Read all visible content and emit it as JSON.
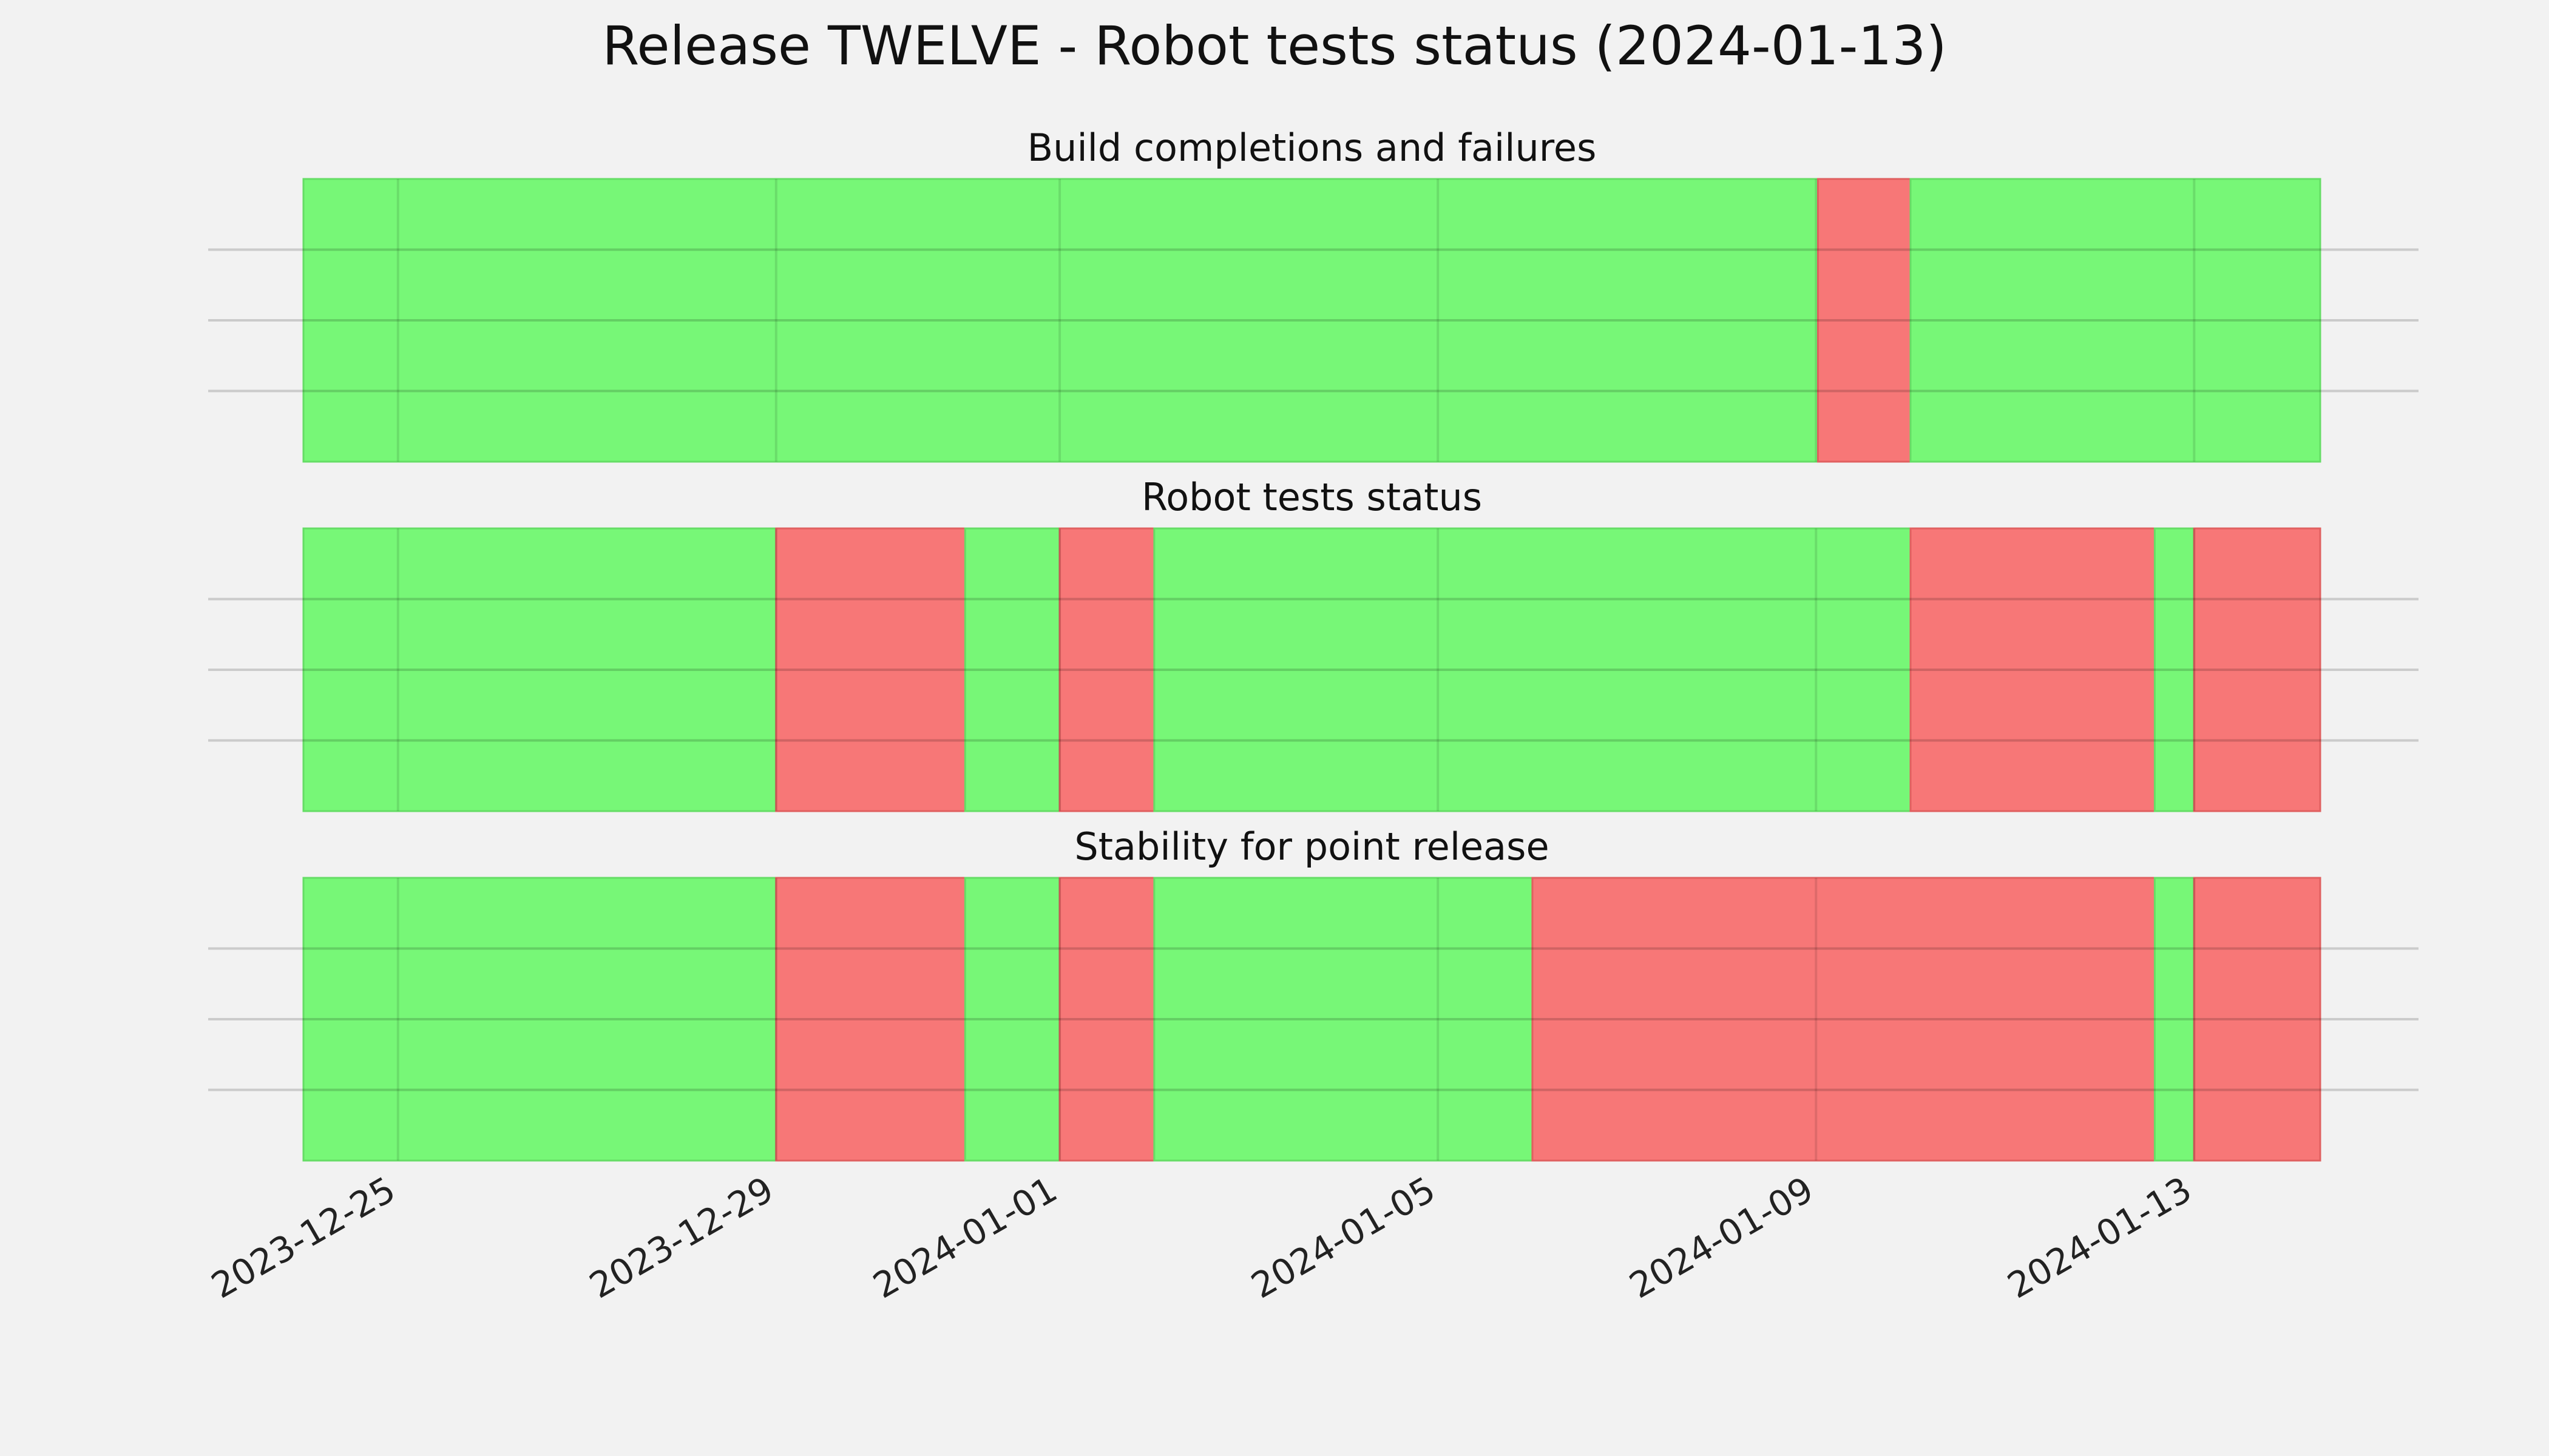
{
  "chart_data": {
    "type": "timeline",
    "title": "Release TWELVE - Robot tests status (2024-01-13)",
    "x_axis": {
      "type": "date",
      "range": [
        "2023-12-24T00:00",
        "2024-01-14T08:00"
      ],
      "ticks": [
        "2023-12-25",
        "2023-12-29",
        "2024-01-01",
        "2024-01-05",
        "2024-01-09",
        "2024-01-13"
      ]
    },
    "grid": true,
    "colors": {
      "pass": "#77f777",
      "fail": "#f77777",
      "background": "#f2f2f2"
    },
    "panels": [
      {
        "title": "Build completions and failures",
        "segments": [
          {
            "start": "2023-12-24T00:00",
            "end": "2024-01-09T00:30",
            "status": "pass"
          },
          {
            "start": "2024-01-09T00:30",
            "end": "2024-01-10T00:00",
            "status": "fail"
          },
          {
            "start": "2024-01-10T00:00",
            "end": "2024-01-14T08:00",
            "status": "pass"
          }
        ]
      },
      {
        "title": "Robot tests status",
        "segments": [
          {
            "start": "2023-12-24T00:00",
            "end": "2023-12-29T00:00",
            "status": "pass"
          },
          {
            "start": "2023-12-29T00:00",
            "end": "2023-12-31T00:00",
            "status": "fail"
          },
          {
            "start": "2023-12-31T00:00",
            "end": "2024-01-01T00:00",
            "status": "pass"
          },
          {
            "start": "2024-01-01T00:00",
            "end": "2024-01-02T00:00",
            "status": "fail"
          },
          {
            "start": "2024-01-02T00:00",
            "end": "2024-01-10T00:00",
            "status": "pass"
          },
          {
            "start": "2024-01-10T00:00",
            "end": "2024-01-12T14:00",
            "status": "fail"
          },
          {
            "start": "2024-01-12T14:00",
            "end": "2024-01-13T00:00",
            "status": "pass"
          },
          {
            "start": "2024-01-13T00:00",
            "end": "2024-01-14T08:00",
            "status": "fail"
          }
        ]
      },
      {
        "title": "Stability for point release",
        "segments": [
          {
            "start": "2023-12-24T00:00",
            "end": "2023-12-29T00:00",
            "status": "pass"
          },
          {
            "start": "2023-12-29T00:00",
            "end": "2023-12-31T00:00",
            "status": "fail"
          },
          {
            "start": "2023-12-31T00:00",
            "end": "2024-01-01T00:00",
            "status": "pass"
          },
          {
            "start": "2024-01-01T00:00",
            "end": "2024-01-02T00:00",
            "status": "fail"
          },
          {
            "start": "2024-01-02T00:00",
            "end": "2024-01-06T00:00",
            "status": "pass"
          },
          {
            "start": "2024-01-06T00:00",
            "end": "2024-01-12T14:00",
            "status": "fail"
          },
          {
            "start": "2024-01-12T14:00",
            "end": "2024-01-13T00:00",
            "status": "pass"
          },
          {
            "start": "2024-01-13T00:00",
            "end": "2024-01-14T08:00",
            "status": "fail"
          }
        ]
      }
    ]
  }
}
